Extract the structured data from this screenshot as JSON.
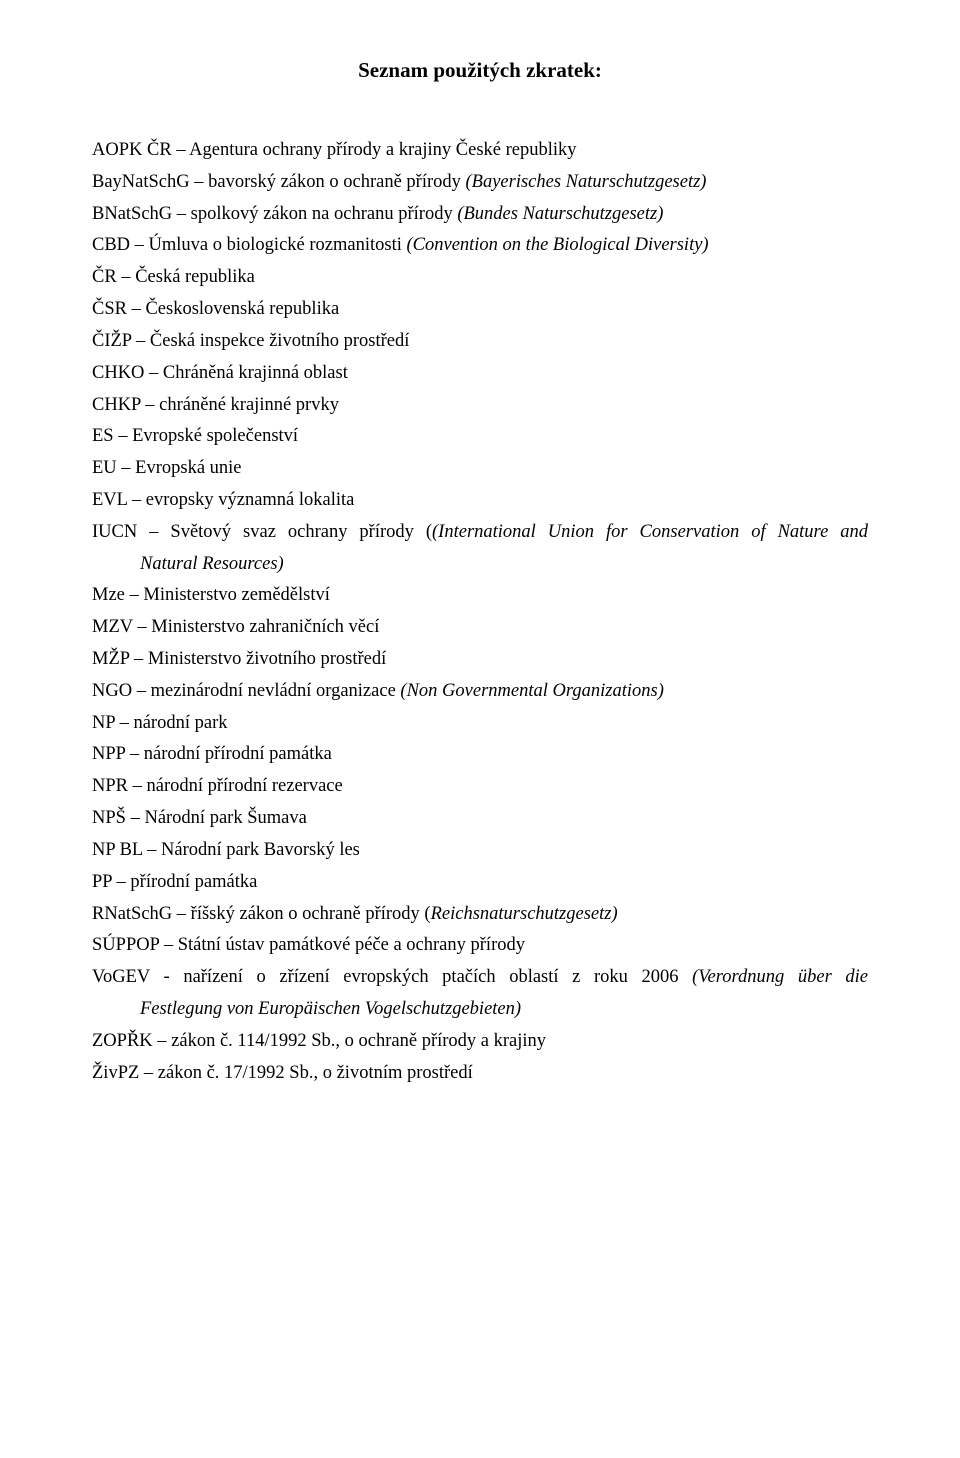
{
  "title": "Seznam použitých zkratek:",
  "entries": {
    "e0": {
      "abbr": "AOPK ČR",
      "sep": " – ",
      "def": "Agentura ochrany přírody a krajiny České republiky"
    },
    "e1": {
      "abbr": "BayNatSchG",
      "sep": " – ",
      "def": "bavorský zákon o ochraně přírody ",
      "ital": "(Bayerisches Naturschutzgesetz)"
    },
    "e2": {
      "abbr": "BNatSchG",
      "sep": " – ",
      "def": "spolkový zákon na ochranu přírody ",
      "ital": "(Bundes Naturschutzgesetz)"
    },
    "e3": {
      "abbr": "CBD",
      "sep": " – ",
      "def": "Úmluva o biologické rozmanitosti ",
      "ital": "(Convention on the Biological Diversity)"
    },
    "e4": {
      "abbr": "ČR",
      "sep": " – ",
      "def": "Česká republika"
    },
    "e5": {
      "abbr": "ČSR",
      "sep": " – ",
      "def": "Československá republika"
    },
    "e6": {
      "abbr": "ČIŽP",
      "sep": " – ",
      "def": "Česká inspekce životního prostředí"
    },
    "e7": {
      "abbr": "CHKO",
      "sep": " – ",
      "def": "Chráněná krajinná oblast"
    },
    "e8": {
      "abbr": "CHKP",
      "sep": " – ",
      "def": "chráněné krajinné prvky"
    },
    "e9": {
      "abbr": "ES",
      "sep": " – ",
      "def": "Evropské společenství"
    },
    "e10": {
      "abbr": "EU",
      "sep": " – ",
      "def": "Evropská unie"
    },
    "e11": {
      "abbr": "EVL",
      "sep": " – ",
      "def": "evropsky významná lokalita"
    },
    "e12": {
      "abbr": "IUCN",
      "sep": " – ",
      "def": "Světový svaz ochrany přírody (",
      "ital": "(International Union for Conservation of Nature and Natural Resources)"
    },
    "e13": {
      "abbr": "Mze",
      "sep": " – ",
      "def": "Ministerstvo zemědělství"
    },
    "e14": {
      "abbr": "MZV",
      "sep": " – ",
      "def": "Ministerstvo zahraničních věcí"
    },
    "e15": {
      "abbr": "MŽP",
      "sep": " – ",
      "def": "Ministerstvo životního prostředí"
    },
    "e16": {
      "abbr": "NGO",
      "sep": " – ",
      "def": "mezinárodní nevládní organizace ",
      "ital": "(Non Governmental Organizations)"
    },
    "e17": {
      "abbr": "NP",
      "sep": " – ",
      "def": "národní park"
    },
    "e18": {
      "abbr": "NPP",
      "sep": " – ",
      "def": "národní přírodní památka"
    },
    "e19": {
      "abbr": "NPR",
      "sep": " – ",
      "def": "národní přírodní rezervace"
    },
    "e20": {
      "abbr": "NPŠ",
      "sep": " – ",
      "def": "Národní park Šumava"
    },
    "e21": {
      "abbr": "NP BL",
      "sep": " – ",
      "def": "Národní park Bavorský les"
    },
    "e22": {
      "abbr": "PP",
      "sep": " – ",
      "def": "přírodní památka"
    },
    "e23": {
      "abbr": "RNatSchG",
      "sep": " – ",
      "def": "říšský zákon o ochraně přírody (",
      "ital": "Reichsnaturschutzgesetz)"
    },
    "e24": {
      "abbr": "SÚPPOP",
      "sep": " – ",
      "def": "Státní ústav památkové péče a ochrany přírody"
    },
    "e25": {
      "abbr": "VoGEV",
      "sep": " - ",
      "def": "nařízení o zřízení evropských ptačích oblastí z roku 2006 ",
      "ital": "(Verordnung über die Festlegung von Europäischen Vogelschutzgebieten)"
    },
    "e26": {
      "abbr": "ZOPŘK",
      "sep": " – ",
      "def": "zákon č. 114/1992 Sb., o ochraně přírody a krajiny"
    },
    "e27": {
      "abbr": "ŽivPZ",
      "sep": " – ",
      "def": "zákon č. 17/1992 Sb., o životním prostředí"
    }
  },
  "iucn_line1_def": "Světový svaz ochrany přírody (",
  "iucn_line1_ital": "(International Union for Conservation of Nature and",
  "iucn_line2_ital": "Natural Resources)",
  "vogev_line1_def": "nařízení o zřízení evropských ptačích oblastí z roku 2006 ",
  "vogev_line1_ital": "(Verordnung über die",
  "vogev_line2_ital": "Festlegung von Europäischen Vogelschutzgebieten)"
}
